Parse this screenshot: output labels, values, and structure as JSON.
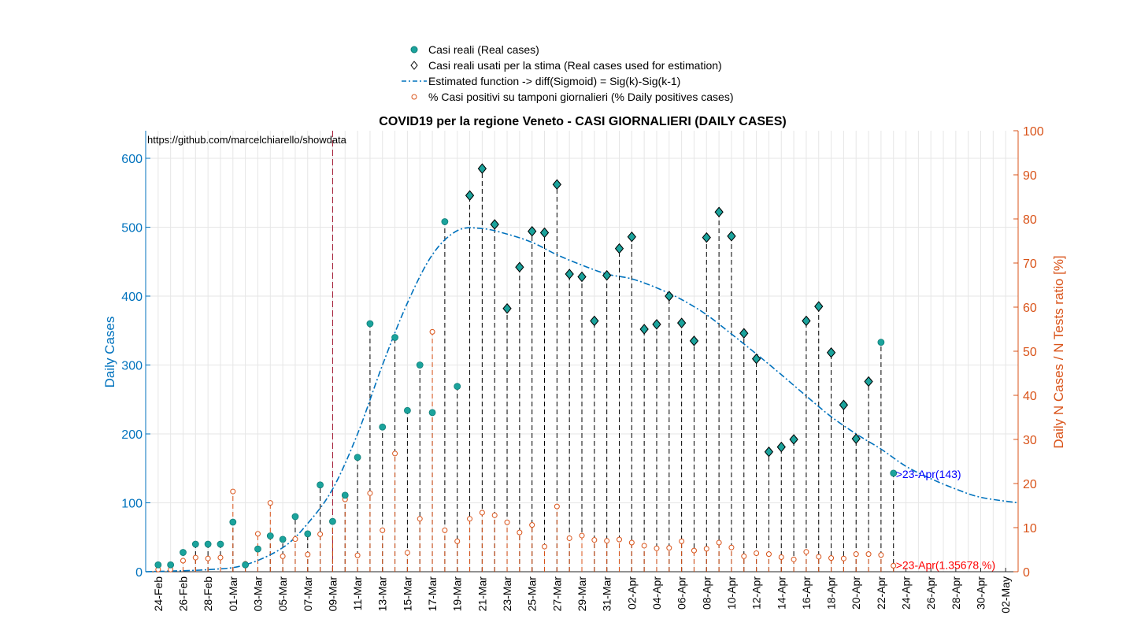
{
  "chart_data": {
    "type": "scatter",
    "title": "COVID19 per la regione Veneto - CASI GIORNALIERI (DAILY CASES)",
    "annotation_source": "https://github.com/marcelchiarello/showdata",
    "ylabel_left": "Daily Cases",
    "ylabel_right": "Daily N Cases / N Tests ratio [%]",
    "ylim_left": [
      0,
      640
    ],
    "ylim_right": [
      0,
      100
    ],
    "x_range_days": "2020-02-23 .. 2020-05-03",
    "xticks": [
      "24-Feb",
      "26-Feb",
      "28-Feb",
      "01-Mar",
      "03-Mar",
      "05-Mar",
      "07-Mar",
      "09-Mar",
      "11-Mar",
      "13-Mar",
      "15-Mar",
      "17-Mar",
      "19-Mar",
      "21-Mar",
      "23-Mar",
      "25-Mar",
      "27-Mar",
      "29-Mar",
      "31-Mar",
      "02-Apr",
      "04-Apr",
      "06-Apr",
      "08-Apr",
      "10-Apr",
      "12-Apr",
      "14-Apr",
      "16-Apr",
      "18-Apr",
      "20-Apr",
      "22-Apr",
      "24-Apr",
      "26-Apr",
      "28-Apr",
      "30-Apr",
      "02-May"
    ],
    "yticks_left": [
      "0",
      "100",
      "200",
      "300",
      "400",
      "500",
      "600"
    ],
    "yticks_right": [
      "0",
      "10",
      "20",
      "30",
      "40",
      "50",
      "60",
      "70",
      "80",
      "90",
      "100"
    ],
    "grid": true,
    "legend_position": "top-center",
    "legend": [
      {
        "name": "Casi reali (Real cases)",
        "marker": "filled-circle",
        "color": "#1BA39C"
      },
      {
        "name": "Casi reali usati per la stima (Real cases used for estimation)",
        "marker": "diamond",
        "color": "#000000"
      },
      {
        "name": "Estimated function -> diff(Sigmoid) = Sig(k)-Sig(k-1)",
        "marker": "dash-dot-line",
        "color": "#0072BD"
      },
      {
        "name": "% Casi positivi su tamponi giornalieri (% Daily positives cases)",
        "marker": "open-circle",
        "color": "#D95319"
      }
    ],
    "vertical_marker_date": "2020-03-09",
    "series": [
      {
        "name": "Casi reali (Real cases)",
        "dates": [
          "2020-02-24",
          "2020-02-25",
          "2020-02-26",
          "2020-02-27",
          "2020-02-28",
          "2020-02-29",
          "2020-03-01",
          "2020-03-02",
          "2020-03-03",
          "2020-03-04",
          "2020-03-05",
          "2020-03-06",
          "2020-03-07",
          "2020-03-08",
          "2020-03-09",
          "2020-03-10",
          "2020-03-11",
          "2020-03-12",
          "2020-03-13",
          "2020-03-14",
          "2020-03-15",
          "2020-03-16",
          "2020-03-17",
          "2020-03-18",
          "2020-03-19",
          "2020-03-20",
          "2020-03-21",
          "2020-03-22",
          "2020-03-23",
          "2020-03-24",
          "2020-03-25",
          "2020-03-26",
          "2020-03-27",
          "2020-03-28",
          "2020-03-29",
          "2020-03-30",
          "2020-03-31",
          "2020-04-01",
          "2020-04-02",
          "2020-04-03",
          "2020-04-04",
          "2020-04-05",
          "2020-04-06",
          "2020-04-07",
          "2020-04-08",
          "2020-04-09",
          "2020-04-10",
          "2020-04-11",
          "2020-04-12",
          "2020-04-13",
          "2020-04-14",
          "2020-04-15",
          "2020-04-16",
          "2020-04-17",
          "2020-04-18",
          "2020-04-19",
          "2020-04-20",
          "2020-04-21",
          "2020-04-22",
          "2020-04-23"
        ],
        "values": [
          10,
          10,
          28,
          40,
          40,
          40,
          72,
          10,
          33,
          52,
          47,
          80,
          55,
          126,
          73,
          111,
          166,
          360,
          210,
          340,
          234,
          300,
          231,
          508,
          269,
          546,
          585,
          504,
          382,
          442,
          494,
          492,
          562,
          432,
          428,
          364,
          430,
          469,
          486,
          352,
          359,
          400,
          361,
          335,
          485,
          522,
          487,
          346,
          309,
          174,
          181,
          192,
          364,
          385,
          318,
          242,
          193,
          276,
          333,
          143
        ]
      },
      {
        "name": "Casi reali usati per la stima (Real cases used for estimation)",
        "dates": [
          "2020-03-20",
          "2020-03-21",
          "2020-03-22",
          "2020-03-23",
          "2020-03-24",
          "2020-03-25",
          "2020-03-26",
          "2020-03-27",
          "2020-03-28",
          "2020-03-29",
          "2020-03-30",
          "2020-03-31",
          "2020-04-01",
          "2020-04-02",
          "2020-04-03",
          "2020-04-04",
          "2020-04-05",
          "2020-04-06",
          "2020-04-07",
          "2020-04-08",
          "2020-04-09",
          "2020-04-10",
          "2020-04-11",
          "2020-04-12",
          "2020-04-13",
          "2020-04-14",
          "2020-04-15",
          "2020-04-16",
          "2020-04-17",
          "2020-04-18",
          "2020-04-19",
          "2020-04-20",
          "2020-04-21"
        ],
        "values": [
          546,
          585,
          504,
          382,
          442,
          494,
          492,
          562,
          432,
          428,
          364,
          430,
          469,
          486,
          352,
          359,
          400,
          361,
          335,
          485,
          522,
          487,
          346,
          309,
          174,
          181,
          192,
          364,
          385,
          318,
          242,
          193,
          276
        ]
      },
      {
        "name": "Estimated function -> diff(Sigmoid) = Sig(k)-Sig(k-1)",
        "dates": [
          "2020-02-23",
          "2020-02-28",
          "2020-03-02",
          "2020-03-05",
          "2020-03-07",
          "2020-03-09",
          "2020-03-11",
          "2020-03-13",
          "2020-03-15",
          "2020-03-17",
          "2020-03-19",
          "2020-03-21",
          "2020-03-23",
          "2020-03-25",
          "2020-03-27",
          "2020-03-29",
          "2020-03-31",
          "2020-04-02",
          "2020-04-04",
          "2020-04-06",
          "2020-04-08",
          "2020-04-10",
          "2020-04-12",
          "2020-04-14",
          "2020-04-16",
          "2020-04-18",
          "2020-04-20",
          "2020-04-22",
          "2020-04-24",
          "2020-04-26",
          "2020-04-28",
          "2020-04-30",
          "2020-05-03"
        ],
        "values": [
          0,
          3,
          10,
          35,
          70,
          120,
          200,
          300,
          390,
          460,
          495,
          498,
          490,
          478,
          460,
          445,
          432,
          425,
          412,
          395,
          373,
          345,
          316,
          286,
          255,
          225,
          200,
          178,
          153,
          135,
          120,
          108,
          100
        ]
      },
      {
        "name": "% Casi positivi su tamponi giornalieri (% Daily positives cases)",
        "dates": [
          "2020-02-24",
          "2020-02-25",
          "2020-02-26",
          "2020-02-27",
          "2020-02-28",
          "2020-02-29",
          "2020-03-01",
          "2020-03-02",
          "2020-03-03",
          "2020-03-04",
          "2020-03-05",
          "2020-03-06",
          "2020-03-07",
          "2020-03-08",
          "2020-03-09",
          "2020-03-10",
          "2020-03-11",
          "2020-03-12",
          "2020-03-13",
          "2020-03-14",
          "2020-03-15",
          "2020-03-16",
          "2020-03-17",
          "2020-03-18",
          "2020-03-19",
          "2020-03-20",
          "2020-03-21",
          "2020-03-22",
          "2020-03-23",
          "2020-03-24",
          "2020-03-25",
          "2020-03-26",
          "2020-03-27",
          "2020-03-28",
          "2020-03-29",
          "2020-03-30",
          "2020-03-31",
          "2020-04-01",
          "2020-04-02",
          "2020-04-03",
          "2020-04-04",
          "2020-04-05",
          "2020-04-06",
          "2020-04-07",
          "2020-04-08",
          "2020-04-09",
          "2020-04-10",
          "2020-04-11",
          "2020-04-12",
          "2020-04-13",
          "2020-04-14",
          "2020-04-15",
          "2020-04-16",
          "2020-04-17",
          "2020-04-18",
          "2020-04-19",
          "2020-04-20",
          "2020-04-21",
          "2020-04-22",
          "2020-04-23"
        ],
        "values": [
          0.5,
          0.5,
          2.5,
          3.2,
          3.0,
          3.2,
          18.2,
          1.8,
          8.6,
          15.6,
          3.5,
          7.4,
          3.9,
          8.5,
          11.5,
          16.4,
          3.7,
          17.8,
          9.4,
          26.8,
          4.3,
          12.0,
          54.4,
          9.4,
          6.9,
          12.0,
          13.4,
          12.8,
          11.2,
          8.9,
          10.6,
          5.7,
          14.8,
          7.6,
          8.2,
          7.2,
          7.0,
          7.3,
          6.6,
          5.9,
          5.3,
          5.4,
          6.9,
          4.8,
          5.2,
          6.6,
          5.5,
          3.5,
          4.2,
          4.0,
          3.3,
          2.8,
          4.5,
          3.4,
          3.1,
          3.0,
          4.0,
          4.0,
          3.8,
          1.36
        ]
      }
    ],
    "annotations": {
      "cases_label": ">23-Apr(143)",
      "ratio_label": ">23-Apr(1.35678 %)"
    }
  }
}
